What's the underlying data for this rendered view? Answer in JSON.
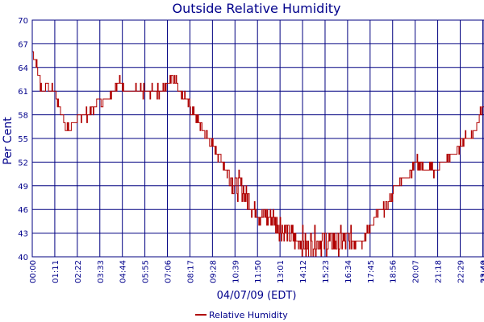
{
  "chart_data": {
    "type": "line",
    "title": "Outside Relative Humidity",
    "xlabel": "04/07/09 (EDT)",
    "ylabel": "Per Cent",
    "ylim": [
      40,
      70
    ],
    "yticks": [
      "40",
      "43",
      "46",
      "49",
      "52",
      "55",
      "58",
      "61",
      "64",
      "67",
      "70"
    ],
    "xticks": [
      "00:00",
      "01:11",
      "02:22",
      "03:33",
      "04:44",
      "05:55",
      "07:06",
      "08:17",
      "09:28",
      "10:39",
      "11:50",
      "13:01",
      "14:12",
      "15:23",
      "16:34",
      "17:45",
      "18:56",
      "20:07",
      "21:18",
      "22:29",
      "23:40",
      "23:44"
    ],
    "grid": true,
    "legend_position": "bottom-center",
    "colors": {
      "series": "#b00000",
      "grid": "#000080",
      "text": "#00008b"
    },
    "series": [
      {
        "name": "Relative Humidity",
        "x": [
          "00:00",
          "00:15",
          "00:30",
          "00:45",
          "01:00",
          "01:11",
          "01:25",
          "01:40",
          "01:55",
          "02:10",
          "02:22",
          "02:40",
          "03:00",
          "03:15",
          "03:33",
          "03:50",
          "04:10",
          "04:25",
          "04:44",
          "05:00",
          "05:20",
          "05:35",
          "05:55",
          "06:15",
          "06:35",
          "06:50",
          "07:06",
          "07:20",
          "07:35",
          "07:50",
          "08:05",
          "08:17",
          "08:30",
          "08:45",
          "09:00",
          "09:15",
          "09:28",
          "09:45",
          "10:00",
          "10:15",
          "10:30",
          "10:39",
          "10:55",
          "11:10",
          "11:25",
          "11:40",
          "11:50",
          "12:05",
          "12:20",
          "12:35",
          "12:50",
          "13:01",
          "13:15",
          "13:30",
          "13:45",
          "14:00",
          "14:12",
          "14:25",
          "14:40",
          "14:55",
          "15:10",
          "15:23",
          "15:40",
          "15:55",
          "16:10",
          "16:25",
          "16:34",
          "16:50",
          "17:05",
          "17:20",
          "17:35",
          "17:45",
          "18:00",
          "18:15",
          "18:30",
          "18:45",
          "18:56",
          "19:10",
          "19:25",
          "19:40",
          "19:55",
          "20:07",
          "20:20",
          "20:35",
          "20:50",
          "21:05",
          "21:18",
          "21:30",
          "21:45",
          "22:00",
          "22:15",
          "22:29",
          "22:45",
          "23:00",
          "23:15",
          "23:30",
          "23:40",
          "23:44"
        ],
        "values": [
          66,
          64,
          61,
          62,
          61,
          61,
          59,
          57,
          56,
          57,
          57,
          58,
          58,
          59,
          60,
          60,
          61,
          62,
          62,
          61,
          61,
          61,
          61,
          61,
          61,
          61,
          62,
          63,
          62,
          61,
          60,
          59,
          58,
          57,
          56,
          55,
          54,
          53,
          52,
          51,
          50,
          49,
          49,
          48,
          47,
          46,
          46,
          45,
          45,
          45,
          44,
          44,
          43,
          43,
          42,
          42,
          42,
          41,
          42,
          42,
          42,
          42,
          42,
          42,
          42,
          42,
          42,
          42,
          42,
          42,
          43,
          44,
          45,
          46,
          46,
          47,
          48,
          49,
          50,
          50,
          51,
          52,
          52,
          51,
          51,
          51,
          51,
          52,
          52,
          53,
          53,
          54,
          55,
          55,
          56,
          58,
          59,
          59
        ]
      }
    ]
  }
}
